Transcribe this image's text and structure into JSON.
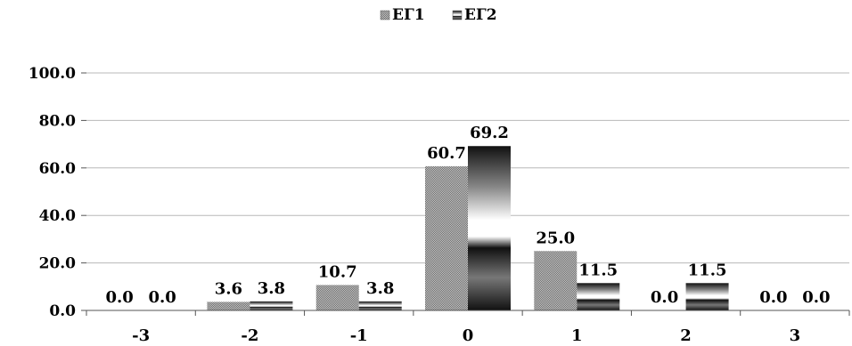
{
  "chart_data": {
    "type": "bar",
    "categories": [
      "-3",
      "-2",
      "-1",
      "0",
      "1",
      "2",
      "3"
    ],
    "series": [
      {
        "name": "ЕГ1",
        "values": [
          0.0,
          3.6,
          10.7,
          60.7,
          25.0,
          0.0,
          0.0
        ],
        "pattern": "diagonal-gradient"
      },
      {
        "name": "ЕГ2",
        "values": [
          0.0,
          3.8,
          3.8,
          69.2,
          11.5,
          11.5,
          0.0
        ],
        "pattern": "horizontal-gradient"
      }
    ],
    "yticks": [
      "0.0",
      "20.0",
      "40.0",
      "60.0",
      "80.0",
      "100.0"
    ],
    "ylim": [
      0,
      100
    ],
    "grid": true,
    "legend_position": "top-center"
  }
}
